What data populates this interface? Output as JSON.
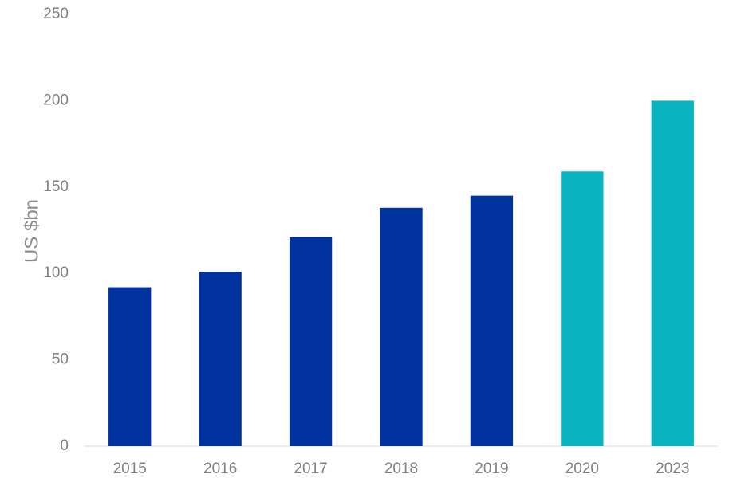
{
  "chart_data": {
    "type": "bar",
    "categories": [
      "2015",
      "2016",
      "2017",
      "2018",
      "2019",
      "2020",
      "2023"
    ],
    "values": [
      92,
      101,
      121,
      138,
      145,
      159,
      200
    ],
    "bar_colors": [
      "#0033a0",
      "#0033a0",
      "#0033a0",
      "#0033a0",
      "#0033a0",
      "#0bb3c0",
      "#0bb3c0"
    ],
    "title": "",
    "xlabel": "",
    "ylabel": "US $bn",
    "ylim": [
      0,
      250
    ],
    "yticks": [
      "0",
      "50",
      "100",
      "150",
      "200",
      "250"
    ],
    "grid": false,
    "axis_color": "#d9d9d9"
  }
}
